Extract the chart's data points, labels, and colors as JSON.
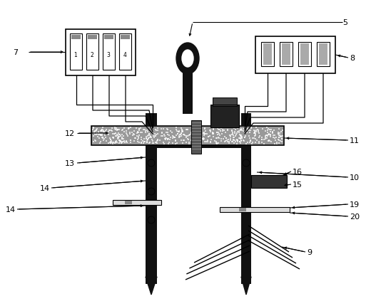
{
  "bg_color": "#ffffff",
  "dark": "#111111",
  "dotted_gray": "#888888",
  "figure_width": 5.34,
  "figure_height": 4.31,
  "dpi": 100
}
